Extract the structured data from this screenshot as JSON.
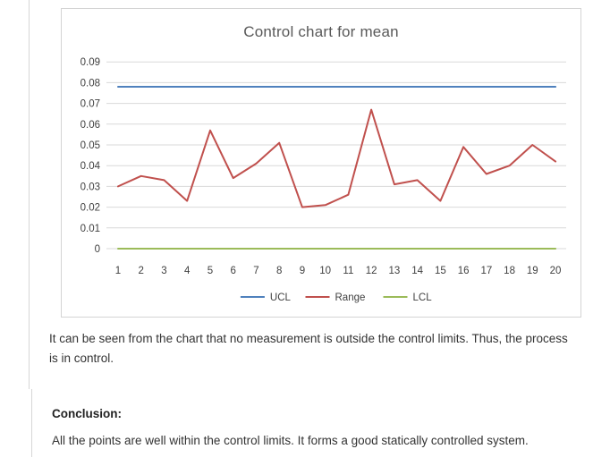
{
  "page": {
    "paragraph1": "It can be seen from the chart that no measurement is outside the control limits. Thus, the process is in control.",
    "conclusion_label": "Conclusion:",
    "conclusion_text": "All the points are well within the control limits. It forms a good statically controlled system."
  },
  "chart_data": {
    "type": "line",
    "title": "Control chart for mean",
    "categories": [
      1,
      2,
      3,
      4,
      5,
      6,
      7,
      8,
      9,
      10,
      11,
      12,
      13,
      14,
      15,
      16,
      17,
      18,
      19,
      20
    ],
    "series": [
      {
        "name": "UCL",
        "color": "#4F81BD",
        "values": [
          0.078,
          0.078,
          0.078,
          0.078,
          0.078,
          0.078,
          0.078,
          0.078,
          0.078,
          0.078,
          0.078,
          0.078,
          0.078,
          0.078,
          0.078,
          0.078,
          0.078,
          0.078,
          0.078,
          0.078
        ]
      },
      {
        "name": "Range",
        "color": "#C0504D",
        "values": [
          0.03,
          0.035,
          0.033,
          0.023,
          0.057,
          0.034,
          0.041,
          0.051,
          0.02,
          0.021,
          0.026,
          0.067,
          0.031,
          0.033,
          0.023,
          0.049,
          0.036,
          0.04,
          0.05,
          0.042
        ]
      },
      {
        "name": "LCL",
        "color": "#9BBB59",
        "values": [
          0,
          0,
          0,
          0,
          0,
          0,
          0,
          0,
          0,
          0,
          0,
          0,
          0,
          0,
          0,
          0,
          0,
          0,
          0,
          0
        ]
      }
    ],
    "ylim": [
      0,
      0.09
    ],
    "yticks": [
      0,
      0.01,
      0.02,
      0.03,
      0.04,
      0.05,
      0.06,
      0.07,
      0.08,
      0.09
    ],
    "grid": true,
    "legend_position": "bottom",
    "colors": {
      "grid": "#d9d9d9",
      "axis_text": "#404040",
      "title": "#595959",
      "chart_border": "#d4d4d4"
    }
  }
}
